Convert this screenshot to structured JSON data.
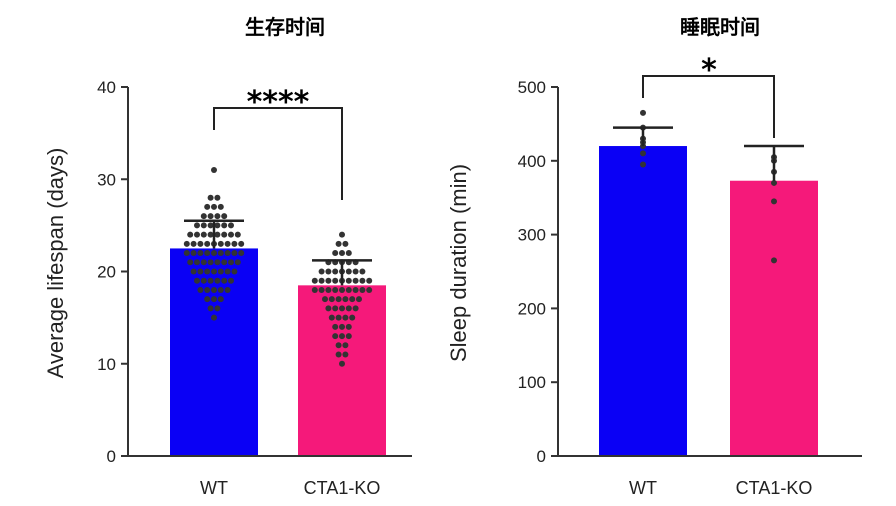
{
  "chart_data": [
    {
      "type": "bar",
      "title": "生存时间",
      "ylabel": "Average lifespan (days)",
      "xlabel": "",
      "ylim": [
        0,
        40
      ],
      "yticks": [
        0,
        10,
        20,
        30,
        40
      ],
      "categories": [
        "WT",
        "CTA1-KO"
      ],
      "values": [
        22.5,
        18.5
      ],
      "errors": [
        3.0,
        2.7
      ],
      "colors": [
        "#0a00f5",
        "#f5197a"
      ],
      "significance": "****",
      "points": [
        [
          31,
          28,
          28,
          27,
          27,
          27,
          26,
          26,
          26,
          26,
          25,
          25,
          25,
          25,
          25,
          25,
          24,
          24,
          24,
          24,
          24,
          24,
          24,
          24,
          23,
          23,
          23,
          23,
          23,
          23,
          23,
          23,
          23,
          22,
          22,
          22,
          22,
          22,
          22,
          22,
          22,
          22,
          21,
          21,
          21,
          21,
          21,
          21,
          21,
          21,
          20,
          20,
          20,
          20,
          20,
          20,
          20,
          19,
          19,
          19,
          19,
          19,
          19,
          18,
          18,
          18,
          18,
          18,
          17,
          17,
          17,
          16,
          16,
          15
        ],
        [
          24,
          23,
          23,
          22,
          22,
          22,
          21,
          21,
          21,
          21,
          21,
          20,
          20,
          20,
          20,
          20,
          20,
          20,
          19,
          19,
          19,
          19,
          19,
          19,
          19,
          19,
          19,
          18,
          18,
          18,
          18,
          18,
          18,
          18,
          18,
          18,
          17,
          17,
          17,
          17,
          17,
          17,
          16,
          16,
          16,
          16,
          16,
          15,
          15,
          15,
          15,
          14,
          14,
          14,
          13,
          13,
          13,
          12,
          12,
          11,
          11,
          10
        ]
      ]
    },
    {
      "type": "bar",
      "title": "睡眠时间",
      "ylabel": "Sleep duration (min)",
      "xlabel": "",
      "ylim": [
        0,
        500
      ],
      "yticks": [
        0,
        100,
        200,
        300,
        400,
        500
      ],
      "categories": [
        "WT",
        "CTA1-KO"
      ],
      "values": [
        420,
        373
      ],
      "errors": [
        25,
        47
      ],
      "colors": [
        "#0a00f5",
        "#f5197a"
      ],
      "significance": "*",
      "points": [
        [
          465,
          445,
          430,
          425,
          420,
          410,
          395
        ],
        [
          405,
          400,
          385,
          370,
          345,
          265
        ]
      ]
    }
  ]
}
